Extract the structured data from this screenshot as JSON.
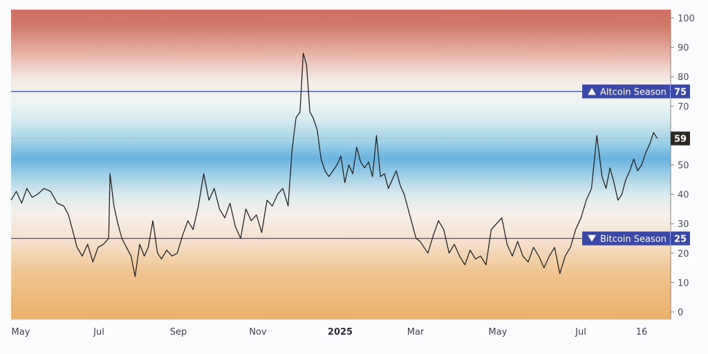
{
  "chart_data": {
    "type": "line",
    "ylim": [
      0,
      100
    ],
    "yticks": [
      0,
      10,
      20,
      30,
      40,
      50,
      60,
      70,
      80,
      90,
      100
    ],
    "x_tick_labels": [
      "May",
      "Jul",
      "Sep",
      "Nov",
      "2025",
      "Mar",
      "May",
      "Jul",
      "16"
    ],
    "x_range": [
      0,
      100
    ],
    "grid": false,
    "background": "gradient-bands",
    "series": [
      {
        "color": "#222222",
        "x": [
          0,
          0.8,
          1.6,
          2.4,
          3.2,
          4,
          5,
          6,
          7,
          8,
          8.7,
          9.3,
          10,
          10.8,
          11.6,
          12.4,
          13.2,
          14,
          14.8,
          15,
          15.6,
          16.2,
          16.8,
          17.5,
          18.2,
          18.8,
          19.5,
          20.2,
          20.8,
          21.5,
          22.2,
          22.8,
          23.6,
          24.4,
          25.2,
          26,
          26.8,
          27.6,
          28.4,
          29.2,
          30,
          30.8,
          31.6,
          32.4,
          33.2,
          34,
          34.8,
          35.6,
          36.4,
          37.2,
          38,
          38.8,
          39.6,
          40.4,
          41.2,
          42,
          42.6,
          43.2,
          43.8,
          44.3,
          44.8,
          45.3,
          45.8,
          46.4,
          47,
          47.6,
          48.2,
          48.8,
          49.4,
          50,
          50.6,
          51.2,
          51.8,
          52.4,
          53,
          53.6,
          54.2,
          54.8,
          55.4,
          56,
          56.6,
          57.2,
          57.8,
          58.4,
          59,
          59.6,
          60.2,
          60.8,
          61.4,
          62,
          62.6,
          63.2,
          64,
          64.8,
          65.6,
          66.4,
          67.2,
          68,
          68.8,
          69.6,
          70.4,
          71.2,
          72,
          72.8,
          73.6,
          74.4,
          75.2,
          76,
          76.8,
          77.6,
          78.4,
          79.2,
          80,
          80.8,
          81.6,
          82.4,
          83.2,
          84,
          84.8,
          85.6,
          86.4,
          87.2,
          88,
          88.8,
          89.6,
          90.2,
          90.8,
          91.4,
          92,
          92.6,
          93.2,
          93.8,
          94.4,
          95,
          95.6,
          96.2,
          96.8,
          97.4,
          98
        ],
        "y": [
          38,
          41,
          37,
          42,
          39,
          40,
          42,
          41,
          37,
          36,
          33,
          28,
          22,
          19,
          23,
          17,
          22,
          23,
          25,
          47,
          36,
          30,
          25,
          22,
          19,
          12,
          23,
          19,
          22,
          31,
          20,
          18,
          21,
          19,
          20,
          26,
          31,
          28,
          36,
          47,
          38,
          42,
          35,
          32,
          37,
          29,
          25,
          35,
          31,
          33,
          27,
          38,
          36,
          40,
          42,
          36,
          55,
          66,
          68,
          88,
          84,
          68,
          66,
          62,
          52,
          48,
          46,
          48,
          50,
          53,
          44,
          50,
          47,
          56,
          51,
          49,
          51,
          46,
          60,
          46,
          47,
          42,
          45,
          48,
          43,
          40,
          35,
          30,
          25,
          24,
          22,
          20,
          26,
          31,
          28,
          20,
          23,
          19,
          16,
          21,
          18,
          19,
          16,
          28,
          30,
          32,
          23,
          19,
          24,
          19,
          17,
          22,
          19,
          15,
          19,
          22,
          13,
          19,
          22,
          28,
          32,
          38,
          42,
          60,
          46,
          42,
          49,
          44,
          38,
          40,
          45,
          48,
          52,
          48,
          50,
          54,
          57,
          61,
          59
        ]
      }
    ],
    "reference_lines": [
      {
        "value": 75,
        "label": "Altcoin Season",
        "value_label": "75",
        "marker": "up-triangle",
        "color": "#3a48a8"
      },
      {
        "value": 25,
        "label": "Bitcoin Season",
        "value_label": "25",
        "marker": "down-triangle",
        "color": "#3a48a8"
      }
    ],
    "current_value": {
      "value": 59,
      "label": "59",
      "color": "#2e2a26"
    }
  }
}
